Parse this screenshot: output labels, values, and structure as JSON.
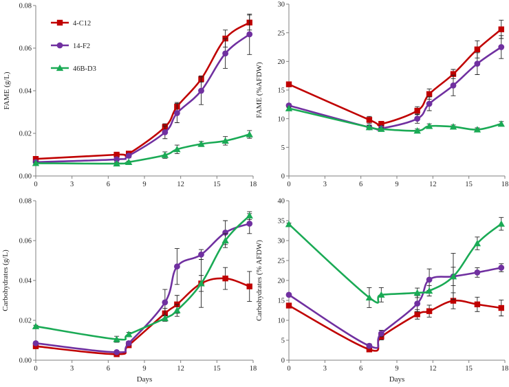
{
  "chart_data": [
    {
      "type": "line",
      "panel": "top-left",
      "title": "",
      "xlabel": "",
      "ylabel": "FAME (g/L)",
      "xlim": [
        0,
        18
      ],
      "ylim": [
        0,
        0.08
      ],
      "xticks": [
        "0",
        "3",
        "6",
        "9",
        "12",
        "15",
        "18"
      ],
      "yticks": [
        "0.00",
        "0.02",
        "0.04",
        "0.06",
        "0.08"
      ],
      "legend": "top-left",
      "series": [
        {
          "name": "4-C12",
          "color": "#c00000",
          "marker": "square",
          "x": [
            0,
            6.7,
            7.7,
            10.7,
            11.7,
            13.7,
            15.7,
            17.7
          ],
          "values": [
            0.008,
            0.01,
            0.0105,
            0.023,
            0.0325,
            0.0455,
            0.0645,
            0.072
          ],
          "errors": [
            0.001,
            0.001,
            0.001,
            0.0015,
            0.002,
            0.0015,
            0.004,
            0.0035
          ]
        },
        {
          "name": "14-F2",
          "color": "#7030a0",
          "marker": "circle",
          "x": [
            0,
            6.7,
            7.7,
            10.7,
            11.7,
            13.7,
            15.7,
            17.7
          ],
          "values": [
            0.0065,
            0.0078,
            0.0095,
            0.0205,
            0.0295,
            0.04,
            0.0575,
            0.0665
          ],
          "errors": [
            0.0008,
            0.001,
            0.001,
            0.003,
            0.0045,
            0.0065,
            0.007,
            0.0095
          ]
        },
        {
          "name": "46B-D3",
          "color": "#1aaa55",
          "marker": "triangle",
          "x": [
            0,
            6.7,
            7.7,
            10.7,
            11.7,
            13.7,
            15.7,
            17.7
          ],
          "values": [
            0.006,
            0.0058,
            0.0065,
            0.0098,
            0.0125,
            0.015,
            0.0165,
            0.0195
          ],
          "errors": [
            0.0005,
            0.0005,
            0.0005,
            0.0015,
            0.002,
            0.0012,
            0.002,
            0.0018
          ]
        }
      ]
    },
    {
      "type": "line",
      "panel": "top-right",
      "title": "",
      "xlabel": "",
      "ylabel": "FAME (%AFDW)",
      "xlim": [
        0,
        18
      ],
      "ylim": [
        0,
        30
      ],
      "xticks": [
        "0",
        "3",
        "6",
        "9",
        "12",
        "15",
        "18"
      ],
      "yticks": [
        "0",
        "5",
        "10",
        "15",
        "20",
        "25",
        "30"
      ],
      "series": [
        {
          "name": "4-C12",
          "color": "#c00000",
          "marker": "square",
          "x": [
            0,
            6.7,
            7.7,
            10.7,
            11.7,
            13.7,
            15.7,
            17.7
          ],
          "values": [
            16,
            9.8,
            9.1,
            11.4,
            14.3,
            17.8,
            22.1,
            25.6
          ],
          "errors": [
            0.3,
            0.6,
            0.4,
            0.7,
            0.9,
            0.8,
            1.5,
            1.6
          ]
        },
        {
          "name": "14-F2",
          "color": "#7030a0",
          "marker": "circle",
          "x": [
            0,
            6.7,
            7.7,
            10.7,
            11.7,
            13.7,
            15.7,
            17.7
          ],
          "values": [
            12.3,
            8.5,
            8.3,
            10.0,
            12.6,
            15.8,
            19.6,
            22.5
          ],
          "errors": [
            0.3,
            0.4,
            0.5,
            0.8,
            1.2,
            1.8,
            1.9,
            2.0
          ]
        },
        {
          "name": "46B-D3",
          "color": "#1aaa55",
          "marker": "triangle",
          "x": [
            0,
            6.7,
            7.7,
            10.7,
            11.7,
            13.7,
            15.7,
            17.7
          ],
          "values": [
            11.8,
            8.5,
            8.2,
            7.9,
            8.7,
            8.6,
            8.1,
            9.1
          ],
          "errors": [
            0.2,
            0.3,
            0.2,
            0.3,
            0.4,
            0.3,
            0.3,
            0.4
          ]
        }
      ]
    },
    {
      "type": "line",
      "panel": "bottom-left",
      "title": "",
      "xlabel": "Days",
      "ylabel": "Carbohydrates (g/L)",
      "xlim": [
        0,
        18
      ],
      "ylim": [
        0,
        0.08
      ],
      "xticks": [
        "0",
        "3",
        "6",
        "9",
        "12",
        "15",
        "18"
      ],
      "yticks": [
        "0.00",
        "0.02",
        "0.04",
        "0.06",
        "0.08"
      ],
      "series": [
        {
          "name": "4-C12",
          "color": "#c00000",
          "marker": "square",
          "x": [
            0,
            6.7,
            7.7,
            10.7,
            11.7,
            13.7,
            15.7,
            17.7
          ],
          "values": [
            0.007,
            0.003,
            0.0075,
            0.0235,
            0.028,
            0.0385,
            0.041,
            0.037
          ],
          "errors": [
            0.0005,
            0.0005,
            0.001,
            0.0025,
            0.0045,
            0.012,
            0.0055,
            0.0075
          ]
        },
        {
          "name": "14-F2",
          "color": "#7030a0",
          "marker": "circle",
          "x": [
            0,
            6.7,
            7.7,
            10.7,
            11.7,
            13.7,
            15.7,
            17.7
          ],
          "values": [
            0.0085,
            0.004,
            0.0085,
            0.029,
            0.047,
            0.053,
            0.064,
            0.0685
          ],
          "errors": [
            0.0005,
            0.0005,
            0.001,
            0.0065,
            0.009,
            0.0025,
            0.006,
            0.005
          ]
        },
        {
          "name": "46B-D3",
          "color": "#1aaa55",
          "marker": "triangle",
          "x": [
            0,
            6.7,
            7.7,
            10.7,
            11.7,
            13.7,
            15.7,
            17.7
          ],
          "values": [
            0.017,
            0.0105,
            0.013,
            0.021,
            0.025,
            0.0385,
            0.06,
            0.0725
          ],
          "errors": [
            0.0005,
            0.0015,
            0.001,
            0.0015,
            0.003,
            0.004,
            0.0035,
            0.002
          ]
        }
      ]
    },
    {
      "type": "line",
      "panel": "bottom-right",
      "title": "",
      "xlabel": "Days",
      "ylabel": "Carbohydrates (% AFDW)",
      "xlim": [
        0,
        18
      ],
      "ylim": [
        0,
        40
      ],
      "xticks": [
        "0",
        "3",
        "6",
        "9",
        "12",
        "15",
        "18"
      ],
      "yticks": [
        "0",
        "5",
        "10",
        "15",
        "20",
        "25",
        "30",
        "35",
        "40"
      ],
      "series": [
        {
          "name": "4-C12",
          "color": "#c00000",
          "marker": "square",
          "x": [
            0,
            6.7,
            7.7,
            10.7,
            11.7,
            13.7,
            15.7,
            17.7
          ],
          "values": [
            13.7,
            2.7,
            5.9,
            11.5,
            12.3,
            14.9,
            14.0,
            13.1
          ],
          "errors": [
            0.4,
            0.5,
            0.8,
            1.2,
            1.5,
            2.0,
            1.8,
            2.0
          ]
        },
        {
          "name": "14-F2",
          "color": "#7030a0",
          "marker": "circle",
          "x": [
            0,
            6.7,
            7.7,
            10.7,
            11.7,
            13.7,
            15.7,
            17.7
          ],
          "values": [
            16.4,
            3.6,
            6.7,
            14.2,
            20.2,
            21.0,
            22.0,
            23.2
          ],
          "errors": [
            0.4,
            0.5,
            0.8,
            2.0,
            2.7,
            2.3,
            1.2,
            1.0
          ]
        },
        {
          "name": "46B-D3",
          "color": "#1aaa55",
          "marker": "triangle",
          "x": [
            0,
            6.7,
            7.7,
            10.7,
            11.7,
            13.7,
            15.7,
            17.7
          ],
          "values": [
            34.1,
            15.7,
            16.4,
            16.9,
            17.4,
            21.0,
            29.3,
            34.2
          ],
          "errors": [
            0.3,
            2.5,
            1.8,
            1.2,
            1.3,
            5.8,
            1.6,
            1.6
          ]
        }
      ]
    }
  ]
}
